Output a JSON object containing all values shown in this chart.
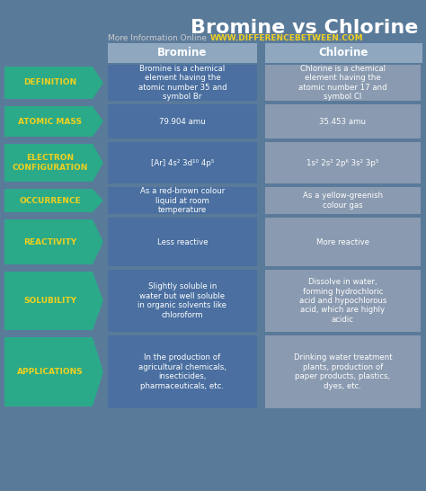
{
  "title": "Bromine vs Chlorine",
  "subtitle_plain": "More Information Online",
  "subtitle_url": "WWW.DIFFERENCEBETWEEN.COM",
  "col_headers": [
    "Bromine",
    "Chlorine"
  ],
  "row_labels": [
    "DEFINITION",
    "ATOMIC MASS",
    "ELECTRON\nCONFIGURATION",
    "OCCURRENCE",
    "REACTIVITY",
    "SOLUBILITY",
    "APPLICATIONS"
  ],
  "bromine_data": [
    "Bromine is a chemical\nelement having the\natomic number 35 and\nsymbol Br",
    "79.904 amu",
    "[Ar] 4s² 3d¹⁰ 4p⁵",
    "As a red-brown colour\nliquid at room\ntemperature",
    "Less reactive",
    "Slightly soluble in\nwater but well soluble\nin organic solvents like\nchloroform",
    "In the production of\nagricultural chemicals,\ninsecticides,\npharmaceuticals, etc."
  ],
  "chlorine_data": [
    "Chlorine is a chemical\nelement having the\natomic number 17 and\nsymbol Cl",
    "35.453 amu",
    "1s² 2s² 2p⁶ 3s² 3p⁵",
    "As a yellow-greenish\ncolour gas",
    "More reactive",
    "Dissolve in water,\nforming hydrochloric\nacid and hypochlorous\nacid, which are highly\nacidic",
    "Drinking water treatment\nplants, production of\npaper products, plastics,\ndyes, etc."
  ],
  "bg_color": "#5a7a9a",
  "header_bg": "#8fa8c0",
  "cell_blue": "#4a6fa0",
  "cell_gray": "#8a9ab0",
  "label_teal": "#2aaa88",
  "label_text_color": "#f0d020",
  "title_color": "#ffffff",
  "col_header_color": "#ffffff",
  "cell_text_color": "#ffffff",
  "url_color": "#f0d020",
  "subtitle_color": "#cccccc"
}
